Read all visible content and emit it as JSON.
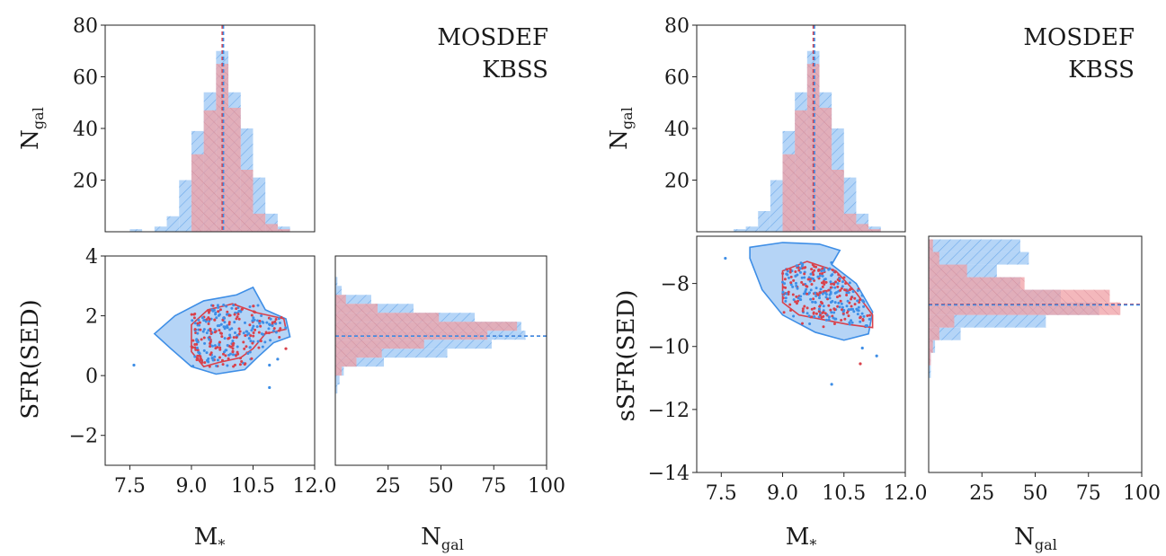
{
  "colors": {
    "mosdef": "#d9414b",
    "kbss": "#3e8ee6",
    "mosdef_fill": "#f0a0a5",
    "kbss_fill": "#a8cdf5",
    "overlap_fill": "#9587b8"
  },
  "legend": {
    "mosdef": "MOSDEF",
    "kbss": "KBSS"
  },
  "chart_data": [
    {
      "type": "bar",
      "id": "left-mass-hist",
      "ylabel": "N",
      "ylabel_sub": "gal",
      "xlim": [
        6.9,
        12.0
      ],
      "ylim": [
        0,
        80
      ],
      "yticks": [
        "20",
        "40",
        "60",
        "80"
      ],
      "ytick_values": [
        20,
        40,
        60,
        80
      ],
      "bin_edges": [
        7.5,
        7.8,
        8.1,
        8.4,
        8.7,
        9.0,
        9.3,
        9.6,
        9.9,
        10.2,
        10.5,
        10.8,
        11.1,
        11.4
      ],
      "series": [
        {
          "name": "KBSS",
          "values": [
            1,
            0,
            2,
            6,
            20,
            39,
            54,
            70,
            54,
            40,
            21,
            7,
            2
          ]
        },
        {
          "name": "MOSDEF",
          "values": [
            0,
            0,
            0,
            0,
            0,
            30,
            47,
            65,
            48,
            24,
            7,
            3,
            1
          ]
        }
      ],
      "medians": {
        "MOSDEF": 9.75,
        "KBSS": 9.78
      }
    },
    {
      "type": "scatter",
      "id": "left-sfr-scatter",
      "xlabel": "M",
      "xlabel_sub": "*",
      "ylabel": "SFR(SED)",
      "xlim": [
        6.9,
        12.0
      ],
      "ylim": [
        -3,
        4
      ],
      "xticks": [
        "7.5",
        "9.0",
        "10.5",
        "12.0"
      ],
      "xtick_values": [
        7.5,
        9.0,
        10.5,
        12.0
      ],
      "yticks": [
        "−2",
        "0",
        "2",
        "4"
      ],
      "ytick_values": [
        -2,
        0,
        2,
        4
      ],
      "contours": {
        "KBSS": [
          [
            8.1,
            1.4
          ],
          [
            8.6,
            2.0
          ],
          [
            9.3,
            2.5
          ],
          [
            10.1,
            2.7
          ],
          [
            10.5,
            2.95
          ],
          [
            10.8,
            2.2
          ],
          [
            11.3,
            1.9
          ],
          [
            11.4,
            1.3
          ],
          [
            11.0,
            1.1
          ],
          [
            10.6,
            0.6
          ],
          [
            10.3,
            0.2
          ],
          [
            9.6,
            0.05
          ],
          [
            9.0,
            0.3
          ],
          [
            8.5,
            0.9
          ]
        ],
        "MOSDEF": [
          [
            9.0,
            1.7
          ],
          [
            9.4,
            2.2
          ],
          [
            10.0,
            2.4
          ],
          [
            10.6,
            2.1
          ],
          [
            11.25,
            1.9
          ],
          [
            11.3,
            1.55
          ],
          [
            10.8,
            1.4
          ],
          [
            10.5,
            0.9
          ],
          [
            10.2,
            0.6
          ],
          [
            9.7,
            0.45
          ],
          [
            9.3,
            0.3
          ],
          [
            9.0,
            0.8
          ]
        ]
      },
      "outliers": [
        [
          7.6,
          0.35
        ],
        [
          10.9,
          -0.4
        ],
        [
          11.3,
          0.9
        ],
        [
          11.1,
          0.55
        ],
        [
          10.9,
          0.35
        ]
      ]
    },
    {
      "type": "bar",
      "id": "left-sfr-hist",
      "orientation": "horizontal",
      "xlabel": "N",
      "xlabel_sub": "gal",
      "xlim": [
        0,
        100
      ],
      "ylim": [
        -3,
        4
      ],
      "xticks": [
        "25",
        "50",
        "75",
        "100"
      ],
      "xtick_values": [
        25,
        50,
        75,
        100
      ],
      "bin_edges": [
        -0.6,
        -0.3,
        0.0,
        0.3,
        0.6,
        0.9,
        1.2,
        1.5,
        1.8,
        2.1,
        2.4,
        2.7,
        3.0,
        3.3
      ],
      "series": [
        {
          "name": "KBSS",
          "values": [
            1,
            2,
            4,
            23,
            53,
            74,
            90,
            88,
            66,
            37,
            17,
            3,
            1
          ]
        },
        {
          "name": "MOSDEF",
          "values": [
            0,
            0,
            3,
            10,
            22,
            42,
            72,
            86,
            49,
            20,
            5,
            0,
            0
          ]
        }
      ],
      "medians": {
        "MOSDEF": 1.32,
        "KBSS": 1.32
      }
    },
    {
      "type": "bar",
      "id": "right-mass-hist",
      "ylabel": "N",
      "ylabel_sub": "gal",
      "xlim": [
        6.9,
        12.0
      ],
      "ylim": [
        0,
        80
      ],
      "yticks": [
        "20",
        "40",
        "60",
        "80"
      ],
      "ytick_values": [
        20,
        40,
        60,
        80
      ],
      "bin_edges": [
        7.5,
        7.8,
        8.1,
        8.4,
        8.7,
        9.0,
        9.3,
        9.6,
        9.9,
        10.2,
        10.5,
        10.8,
        11.1,
        11.4
      ],
      "series": [
        {
          "name": "KBSS",
          "values": [
            0,
            1,
            2,
            8,
            20,
            39,
            54,
            70,
            54,
            40,
            21,
            7,
            2
          ]
        },
        {
          "name": "MOSDEF",
          "values": [
            0,
            0,
            0,
            0,
            0,
            30,
            47,
            65,
            48,
            24,
            7,
            3,
            1
          ]
        }
      ],
      "medians": {
        "MOSDEF": 9.75,
        "KBSS": 9.78
      }
    },
    {
      "type": "scatter",
      "id": "right-ssfr-scatter",
      "xlabel": "M",
      "xlabel_sub": "*",
      "ylabel": "sSFR(SED)",
      "xlim": [
        6.9,
        12.0
      ],
      "ylim": [
        -14,
        -6.5
      ],
      "xticks": [
        "7.5",
        "9.0",
        "10.5",
        "12.0"
      ],
      "xtick_values": [
        7.5,
        9.0,
        10.5,
        12.0
      ],
      "yticks": [
        "−14",
        "−12",
        "−10",
        "−8"
      ],
      "ytick_values": [
        -14,
        -12,
        -10,
        -8
      ],
      "contours": {
        "KBSS": [
          [
            8.2,
            -6.85
          ],
          [
            9.0,
            -6.7
          ],
          [
            9.9,
            -6.75
          ],
          [
            10.4,
            -6.95
          ],
          [
            10.2,
            -7.4
          ],
          [
            10.8,
            -8.0
          ],
          [
            11.2,
            -8.9
          ],
          [
            11.1,
            -9.6
          ],
          [
            10.5,
            -9.8
          ],
          [
            9.8,
            -9.55
          ],
          [
            9.0,
            -9.0
          ],
          [
            8.5,
            -8.2
          ],
          [
            8.2,
            -7.2
          ]
        ],
        "MOSDEF": [
          [
            9.0,
            -7.6
          ],
          [
            9.6,
            -7.3
          ],
          [
            10.3,
            -7.6
          ],
          [
            10.8,
            -8.3
          ],
          [
            11.2,
            -9.0
          ],
          [
            11.2,
            -9.4
          ],
          [
            10.6,
            -9.3
          ],
          [
            10.0,
            -9.15
          ],
          [
            9.4,
            -9.0
          ],
          [
            9.0,
            -8.6
          ]
        ]
      },
      "outliers": [
        [
          7.6,
          -7.2
        ],
        [
          10.2,
          -11.2
        ],
        [
          10.9,
          -10.55
        ],
        [
          11.3,
          -10.3
        ],
        [
          10.95,
          -10.05
        ]
      ]
    },
    {
      "type": "bar",
      "id": "right-ssfr-hist",
      "orientation": "horizontal",
      "xlabel": "N",
      "xlabel_sub": "gal",
      "xlim": [
        0,
        100
      ],
      "ylim": [
        -14,
        -6.5
      ],
      "xticks": [
        "25",
        "50",
        "75",
        "100"
      ],
      "xtick_values": [
        25,
        50,
        75,
        100
      ],
      "bin_edges": [
        -11.0,
        -10.6,
        -10.2,
        -9.8,
        -9.4,
        -9.0,
        -8.6,
        -8.2,
        -7.8,
        -7.4,
        -7.0,
        -6.6
      ],
      "series": [
        {
          "name": "KBSS",
          "values": [
            1,
            1,
            3,
            15,
            55,
            80,
            62,
            43,
            32,
            47,
            43
          ]
        },
        {
          "name": "MOSDEF",
          "values": [
            0,
            1,
            2,
            5,
            12,
            90,
            85,
            45,
            18,
            5,
            2
          ]
        }
      ],
      "medians": {
        "MOSDEF": -8.66,
        "KBSS": -8.68
      }
    }
  ]
}
